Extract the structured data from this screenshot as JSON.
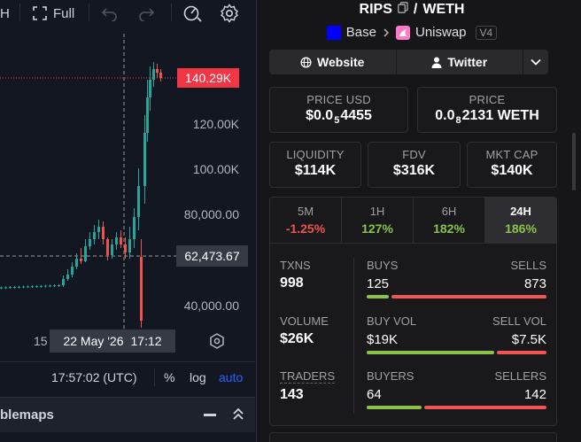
{
  "toolbar": {
    "partial_label": "H",
    "full_label": "Full"
  },
  "chart": {
    "price_labels": [
      "120.00K",
      "100.00K",
      "80,000.00",
      "40,000.00"
    ],
    "last_price": "140.29K",
    "crosshair_price": "62,473.67",
    "date_tick": "15",
    "crosshair_date": "22 May '26",
    "crosshair_time": "17:12",
    "clock": "17:57:02 (UTC)",
    "percent_label": "%",
    "log_label": "log",
    "auto_label": "auto",
    "widget_title": "blemaps",
    "colors": {
      "up": "#26a69a",
      "down": "#ef5350",
      "last_price": "#f23645",
      "accent": "#2962ff"
    }
  },
  "pair": {
    "base_token": "RIPS",
    "separator": "/",
    "quote_token": "WETH",
    "chain": "Base",
    "dex": "Uniswap",
    "dex_version": "V4",
    "chain_color": "#0000ff"
  },
  "links": {
    "website": "Website",
    "twitter": "Twitter"
  },
  "price": {
    "usd_label": "PRICE USD",
    "usd_prefix": "$0.0",
    "usd_zeros": "5",
    "usd_digits": "4455",
    "native_label": "PRICE",
    "native_prefix": "0.0",
    "native_zeros": "8",
    "native_digits": "2131 WETH"
  },
  "metrics": {
    "liquidity_label": "LIQUIDITY",
    "liquidity": "$114K",
    "fdv_label": "FDV",
    "fdv": "$316K",
    "mktcap_label": "MKT CAP",
    "mktcap": "$140K"
  },
  "timeframes": [
    {
      "label": "5M",
      "change": "-1.25%",
      "color": "#f05454"
    },
    {
      "label": "1H",
      "change": "127%",
      "color": "#8bc34a"
    },
    {
      "label": "6H",
      "change": "182%",
      "color": "#8bc34a"
    },
    {
      "label": "24H",
      "change": "186%",
      "color": "#8bc34a",
      "active": true
    }
  ],
  "stats": {
    "txns_label": "TXNS",
    "txns": "998",
    "buys_label": "BUYS",
    "buys": "125",
    "sells_label": "SELLS",
    "sells": "873",
    "buys_fraction": 0.125,
    "volume_label": "VOLUME",
    "volume": "$26K",
    "buyvol_label": "BUY VOL",
    "buyvol": "$19K",
    "sellvol_label": "SELL VOL",
    "sellvol": "$7.5K",
    "buyvol_fraction": 0.72,
    "traders_label": "TRADERS",
    "traders": "143",
    "buyers_label": "BUYERS",
    "buyers": "64",
    "sellers_label": "SELLERS",
    "sellers": "142",
    "buyers_fraction": 0.31
  }
}
